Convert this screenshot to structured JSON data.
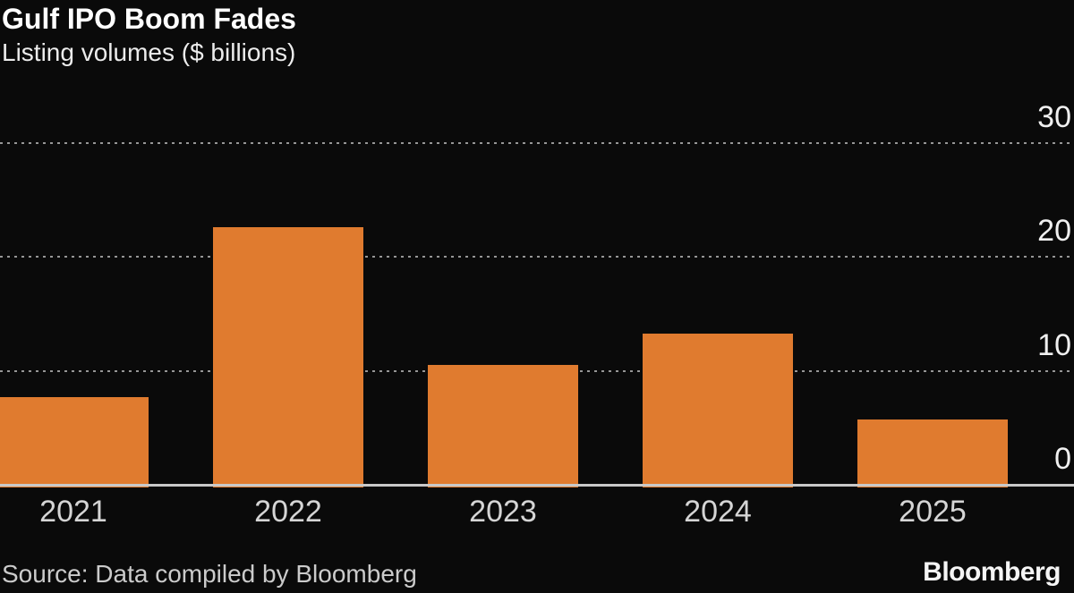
{
  "chart_data": {
    "type": "bar",
    "title": "Gulf IPO Boom Fades",
    "subtitle": "Listing volumes ($ billions)",
    "categories": [
      "2021",
      "2022",
      "2023",
      "2024",
      "2025"
    ],
    "values": [
      7.8,
      22.7,
      10.6,
      13.3,
      5.8
    ],
    "xlabel": "",
    "ylabel": "",
    "ylim": [
      0,
      30
    ],
    "yticks": [
      0,
      10,
      20,
      30
    ],
    "ytick_side": "right",
    "grid": "horizontal-dotted",
    "legend": "none",
    "bar_color": "#e07b2f"
  },
  "footer": {
    "source": "Source: Data compiled by Bloomberg",
    "brand": "Bloomberg"
  },
  "colors": {
    "background": "#0a0a0a",
    "bar": "#e07b2f",
    "axis_line": "#c9c9c9",
    "gridline": "#969696",
    "title": "#ffffff",
    "subtitle": "#ececec",
    "tick_label": "#f0f0f0",
    "category_label": "#d5d5d5",
    "source_text": "#cbcbcb",
    "brand_text": "#f5f5f5"
  }
}
